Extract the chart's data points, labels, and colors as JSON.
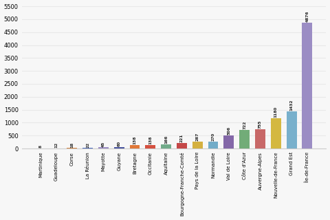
{
  "tick_labels": [
    "Martinique",
    "Guadeloupe",
    "Corse",
    "La Réunion",
    "Mayotte",
    "Guyane",
    "Bretagne",
    "Occitanie",
    "Aquitaine",
    "Bourgogne-Franche-Comté",
    "Pays de la Loire",
    "Normandie",
    "Val de Loire",
    "Côte d'Azur",
    "Auvergne-Alpes",
    "Nouvelle-de-France",
    "Grand Est",
    "Île-de-France"
  ],
  "values": [
    8,
    12,
    18,
    22,
    45,
    60,
    138,
    138,
    166,
    221,
    267,
    270,
    506,
    722,
    755,
    1180,
    1432,
    4876
  ],
  "colors": [
    "#6b6b3a",
    "#e05555",
    "#d4843e",
    "#4a6bbf",
    "#9b8dc4",
    "#4a56a0",
    "#e07838",
    "#d45040",
    "#72ab8a",
    "#c44848",
    "#d4b040",
    "#72acc8",
    "#8468a8",
    "#72ac78",
    "#c86868",
    "#d4b840",
    "#78b0cc",
    "#9b8dc4"
  ],
  "ylim": [
    0,
    5500
  ],
  "yticks": [
    0,
    500,
    1000,
    1500,
    2000,
    2500,
    3000,
    3500,
    4000,
    4500,
    5000,
    5500
  ],
  "bg_color": "#f7f7f7",
  "grid_color": "#e8e8e8"
}
